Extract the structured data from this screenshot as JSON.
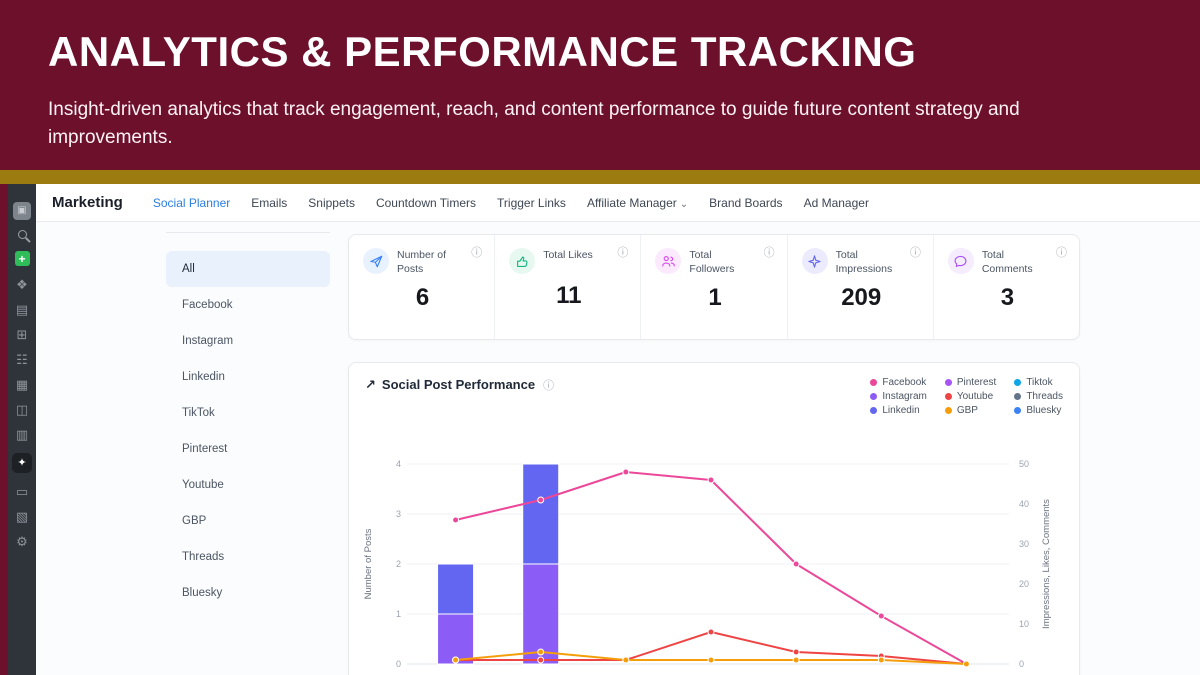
{
  "icons": {
    "info": "ⓘ",
    "chevron_down": "⌄",
    "trend": "↗",
    "plus": "+"
  },
  "colors": {
    "banner_bg": "#6d102c",
    "accent_bar": "#9c7b10",
    "active_tab": "#2b7fe0"
  },
  "banner": {
    "title": "ANALYTICS & PERFORMANCE TRACKING",
    "subtitle": "Insight-driven analytics that track engagement, reach, and content performance to guide future content strategy and improvements."
  },
  "nav": {
    "brand": "Marketing",
    "tabs": [
      {
        "label": "Social Planner",
        "active": true
      },
      {
        "label": "Emails"
      },
      {
        "label": "Snippets"
      },
      {
        "label": "Countdown Timers"
      },
      {
        "label": "Trigger Links"
      },
      {
        "label": "Affiliate Manager",
        "has_dropdown": true
      },
      {
        "label": "Brand Boards"
      },
      {
        "label": "Ad Manager"
      }
    ]
  },
  "sidebar": {
    "icons": [
      {
        "name": "avatar-icon",
        "glyph": "▣",
        "variant": "avatar"
      },
      {
        "name": "search-icon",
        "variant": "search"
      },
      {
        "name": "add-icon",
        "glyph": "+",
        "variant": "add"
      },
      {
        "name": "conversations-icon",
        "glyph": "❖"
      },
      {
        "name": "apps-icon",
        "glyph": "▤"
      },
      {
        "name": "calendar-icon",
        "glyph": "⊞"
      },
      {
        "name": "contacts-icon",
        "glyph": "☷"
      },
      {
        "name": "payments-icon",
        "glyph": "▦"
      },
      {
        "name": "marketing-icon",
        "glyph": "◫"
      },
      {
        "name": "automation-icon",
        "glyph": "▥"
      },
      {
        "name": "ai-assistant-icon",
        "glyph": "✦",
        "active": true
      },
      {
        "name": "sites-icon",
        "glyph": "▭"
      },
      {
        "name": "reporting-icon",
        "glyph": "▧"
      },
      {
        "name": "settings-icon",
        "glyph": "⚙"
      }
    ]
  },
  "channels": {
    "items": [
      {
        "label": "All",
        "active": true
      },
      {
        "label": "Facebook"
      },
      {
        "label": "Instagram"
      },
      {
        "label": "Linkedin"
      },
      {
        "label": "TikTok"
      },
      {
        "label": "Pinterest"
      },
      {
        "label": "Youtube"
      },
      {
        "label": "GBP"
      },
      {
        "label": "Threads"
      },
      {
        "label": "Bluesky"
      }
    ]
  },
  "stats": {
    "cards": [
      {
        "label": "Number of Posts",
        "value": "6",
        "icon": "paper-plane-icon",
        "color": "#3b82f6",
        "bg": "#e8f1fe"
      },
      {
        "label": "Total Likes",
        "value": "11",
        "icon": "thumb-up-icon",
        "color": "#10b981",
        "bg": "#e7f8f1"
      },
      {
        "label": "Total Followers",
        "value": "1",
        "icon": "people-icon",
        "color": "#d946ef",
        "bg": "#fbeafe"
      },
      {
        "label": "Total Impressions",
        "value": "209",
        "icon": "sparkles-icon",
        "color": "#6366f1",
        "bg": "#ecebfe"
      },
      {
        "label": "Total Comments",
        "value": "3",
        "icon": "comment-icon",
        "color": "#a855f7",
        "bg": "#f5ecfe"
      }
    ]
  },
  "chart": {
    "title": "Social Post Performance",
    "legend": [
      {
        "label": "Facebook",
        "color": "#ec4899"
      },
      {
        "label": "Instagram",
        "color": "#8b5cf6"
      },
      {
        "label": "Linkedin",
        "color": "#6366f1"
      },
      {
        "label": "Pinterest",
        "color": "#a855f7"
      },
      {
        "label": "Youtube",
        "color": "#ef4444"
      },
      {
        "label": "GBP",
        "color": "#f59e0b"
      },
      {
        "label": "Tiktok",
        "color": "#0ea5e9"
      },
      {
        "label": "Threads",
        "color": "#64748b"
      },
      {
        "label": "Bluesky",
        "color": "#3b82f6"
      }
    ]
  },
  "chart_data": {
    "type": "combo-bar-line",
    "x_labels_visible": false,
    "categories": [
      "",
      "",
      "",
      "",
      "",
      "",
      ""
    ],
    "left_axis": {
      "label": "Number of Posts",
      "min": 0,
      "max": 4,
      "ticks": [
        0,
        1,
        2,
        3,
        4
      ]
    },
    "right_axis": {
      "label": "Impressions, Likes, Comments",
      "min": 0,
      "max": 50,
      "ticks": [
        0,
        10,
        20,
        30,
        40,
        50
      ]
    },
    "bar_series": [
      {
        "name": "Instagram",
        "axis": "left",
        "color": "#8b5cf6",
        "values": [
          1,
          2,
          0,
          0,
          0,
          0,
          0
        ]
      },
      {
        "name": "Linkedin",
        "axis": "left",
        "color": "#6366f1",
        "values": [
          1,
          2,
          0,
          0,
          0,
          0,
          0
        ]
      }
    ],
    "line_series": [
      {
        "name": "Facebook",
        "axis": "right",
        "color": "#ec4899",
        "values": [
          36,
          41,
          48,
          46,
          25,
          12,
          0
        ]
      },
      {
        "name": "Youtube",
        "axis": "right",
        "color": "#ef4444",
        "values": [
          1,
          1,
          1,
          8,
          3,
          2,
          0
        ]
      },
      {
        "name": "GBP",
        "axis": "right",
        "color": "#f59e0b",
        "values": [
          1,
          3,
          1,
          1,
          1,
          1,
          0
        ]
      }
    ]
  }
}
